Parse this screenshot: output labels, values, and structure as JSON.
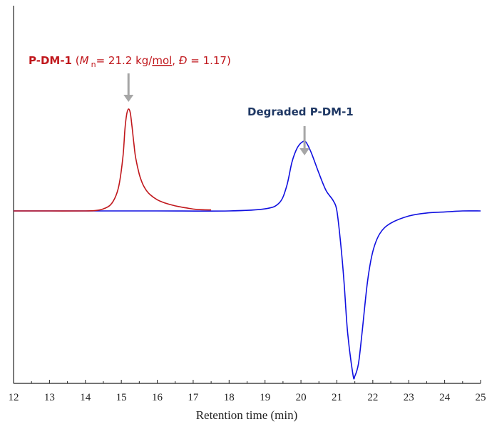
{
  "chart_data": {
    "type": "line",
    "xlabel": "Retention time (min)",
    "ylabel": "",
    "xlim": [
      12,
      25
    ],
    "x_ticks": [
      "12",
      "13",
      "14",
      "15",
      "16",
      "17",
      "18",
      "19",
      "20",
      "21",
      "22",
      "23",
      "24",
      "25"
    ],
    "grid": false,
    "legend": "none",
    "series": [
      {
        "color": "#c0171c",
        "x": [
          12.0,
          13.0,
          14.0,
          14.3,
          14.5,
          14.7,
          14.85,
          14.95,
          15.05,
          15.1,
          15.15,
          15.2,
          15.25,
          15.3,
          15.35,
          15.4,
          15.5,
          15.6,
          15.7,
          15.8,
          16.0,
          16.2,
          16.5,
          16.8,
          17.1,
          17.5
        ],
        "y": [
          0.0,
          0.0,
          0.0,
          0.005,
          0.02,
          0.06,
          0.15,
          0.28,
          0.55,
          0.8,
          0.95,
          1.0,
          0.96,
          0.82,
          0.66,
          0.52,
          0.36,
          0.26,
          0.2,
          0.16,
          0.11,
          0.08,
          0.05,
          0.03,
          0.015,
          0.01
        ]
      },
      {
        "color": "#1010e0",
        "x": [
          12.0,
          14.0,
          16.0,
          18.0,
          19.0,
          19.4,
          19.6,
          19.75,
          19.9,
          20.05,
          20.15,
          20.3,
          20.5,
          20.7,
          20.9,
          21.0,
          21.1,
          21.2,
          21.3,
          21.45,
          21.5,
          21.6,
          21.7,
          21.85,
          22.0,
          22.2,
          22.5,
          23.0,
          23.5,
          24.0,
          24.5,
          25.0
        ],
        "y": [
          0.0,
          0.0,
          0.0,
          0.0,
          0.02,
          0.08,
          0.24,
          0.48,
          0.62,
          0.68,
          0.67,
          0.56,
          0.37,
          0.2,
          0.1,
          0.0,
          -0.3,
          -0.7,
          -1.2,
          -1.61,
          -1.62,
          -1.5,
          -1.2,
          -0.7,
          -0.4,
          -0.22,
          -0.12,
          -0.05,
          -0.02,
          -0.01,
          0.0,
          0.0
        ]
      }
    ],
    "annotations": {
      "red": {
        "bold": "P-DM-1",
        "open": " (",
        "italic_m": "M",
        "sub": "n",
        "eq": "= 21.2 kg/",
        "mol": "mol",
        "comma": ", ",
        "italic_d": "Đ",
        "rest": " = 1.17)",
        "arrow_x": 15.2
      },
      "blue": {
        "text": "Degraded P-DM-1",
        "arrow_x": 20.1
      }
    },
    "colors": {
      "red": "#c0171c",
      "blue": "#1010e0",
      "arrow": "#a6a6a6",
      "axis": "#222222"
    }
  }
}
